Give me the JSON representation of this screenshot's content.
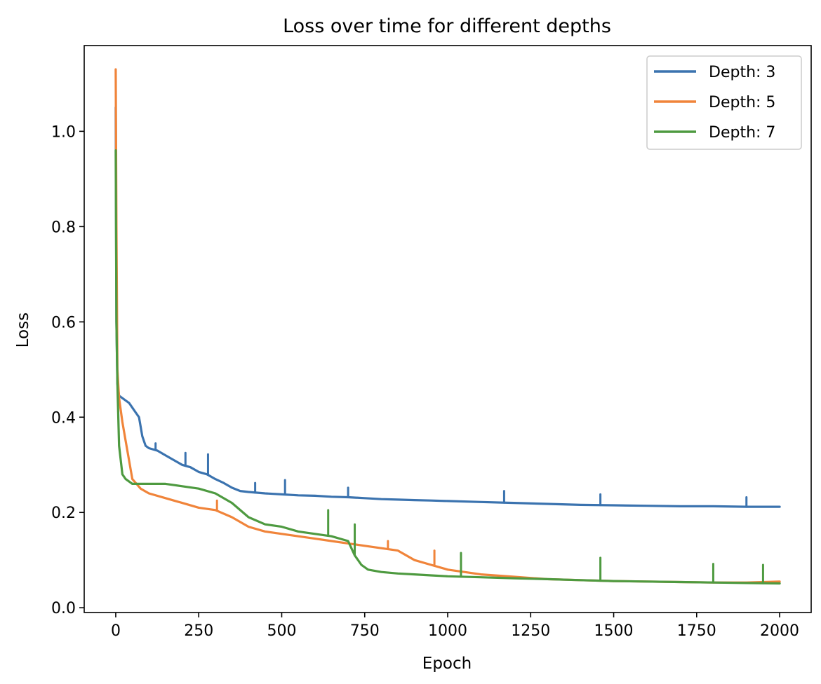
{
  "chart_data": {
    "type": "line",
    "title": "Loss over time for different depths",
    "xlabel": "Epoch",
    "ylabel": "Loss",
    "xlim": [
      -95,
      2095
    ],
    "ylim": [
      -0.01,
      1.18
    ],
    "xticks": [
      0,
      250,
      500,
      750,
      1000,
      1250,
      1500,
      1750,
      2000
    ],
    "xtick_labels": [
      "0",
      "250",
      "500",
      "750",
      "1000",
      "1250",
      "1500",
      "1750",
      "2000"
    ],
    "yticks": [
      0.0,
      0.2,
      0.4,
      0.6,
      0.8,
      1.0
    ],
    "ytick_labels": [
      "0.0",
      "0.2",
      "0.4",
      "0.6",
      "0.8",
      "1.0"
    ],
    "grid": false,
    "legend_position": "top-right",
    "series": [
      {
        "name": "Depth: 3",
        "color": "#3b73af",
        "x": [
          0,
          2,
          5,
          10,
          20,
          30,
          40,
          50,
          60,
          70,
          80,
          90,
          100,
          125,
          150,
          175,
          200,
          225,
          250,
          275,
          300,
          325,
          350,
          375,
          400,
          450,
          500,
          550,
          600,
          650,
          700,
          750,
          800,
          850,
          900,
          950,
          1000,
          1100,
          1200,
          1300,
          1400,
          1500,
          1600,
          1700,
          1800,
          1900,
          2000
        ],
        "y": [
          1.05,
          0.6,
          0.47,
          0.445,
          0.44,
          0.435,
          0.43,
          0.42,
          0.41,
          0.4,
          0.36,
          0.34,
          0.335,
          0.33,
          0.32,
          0.31,
          0.3,
          0.295,
          0.285,
          0.28,
          0.27,
          0.262,
          0.252,
          0.245,
          0.243,
          0.24,
          0.238,
          0.236,
          0.235,
          0.233,
          0.232,
          0.23,
          0.228,
          0.227,
          0.226,
          0.225,
          0.224,
          0.222,
          0.22,
          0.218,
          0.216,
          0.215,
          0.214,
          0.213,
          0.213,
          0.212,
          0.212
        ],
        "spikes": [
          [
            120,
            0.345
          ],
          [
            210,
            0.325
          ],
          [
            278,
            0.322
          ],
          [
            420,
            0.262
          ],
          [
            510,
            0.268
          ],
          [
            700,
            0.252
          ],
          [
            1170,
            0.245
          ],
          [
            1460,
            0.238
          ],
          [
            1900,
            0.232
          ]
        ]
      },
      {
        "name": "Depth: 5",
        "color": "#f0843a",
        "x": [
          0,
          2,
          5,
          10,
          20,
          30,
          50,
          75,
          100,
          150,
          200,
          250,
          300,
          350,
          400,
          450,
          500,
          550,
          600,
          650,
          700,
          750,
          800,
          850,
          900,
          950,
          1000,
          1050,
          1100,
          1200,
          1300,
          1400,
          1500,
          1600,
          1700,
          1800,
          1900,
          2000
        ],
        "y": [
          1.13,
          0.8,
          0.5,
          0.44,
          0.39,
          0.35,
          0.27,
          0.25,
          0.24,
          0.23,
          0.22,
          0.21,
          0.205,
          0.19,
          0.17,
          0.16,
          0.155,
          0.15,
          0.145,
          0.14,
          0.135,
          0.13,
          0.125,
          0.12,
          0.1,
          0.09,
          0.08,
          0.075,
          0.07,
          0.065,
          0.06,
          0.058,
          0.056,
          0.055,
          0.054,
          0.053,
          0.053,
          0.055
        ],
        "spikes": [
          [
            305,
            0.225
          ],
          [
            820,
            0.14
          ],
          [
            960,
            0.12
          ]
        ]
      },
      {
        "name": "Depth: 7",
        "color": "#4e9a40",
        "x": [
          0,
          2,
          5,
          10,
          20,
          30,
          50,
          75,
          100,
          150,
          200,
          250,
          300,
          350,
          400,
          450,
          500,
          550,
          600,
          650,
          700,
          720,
          740,
          760,
          800,
          850,
          900,
          950,
          1000,
          1100,
          1200,
          1300,
          1400,
          1500,
          1600,
          1700,
          1800,
          1900,
          2000
        ],
        "y": [
          0.96,
          0.6,
          0.47,
          0.34,
          0.28,
          0.27,
          0.26,
          0.26,
          0.26,
          0.26,
          0.255,
          0.25,
          0.24,
          0.22,
          0.19,
          0.175,
          0.17,
          0.16,
          0.155,
          0.15,
          0.14,
          0.11,
          0.09,
          0.08,
          0.075,
          0.072,
          0.07,
          0.068,
          0.066,
          0.064,
          0.062,
          0.06,
          0.058,
          0.056,
          0.055,
          0.054,
          0.053,
          0.052,
          0.051
        ],
        "spikes": [
          [
            640,
            0.205
          ],
          [
            720,
            0.175
          ],
          [
            1040,
            0.115
          ],
          [
            1460,
            0.105
          ],
          [
            1800,
            0.092
          ],
          [
            1950,
            0.09
          ]
        ]
      }
    ]
  }
}
